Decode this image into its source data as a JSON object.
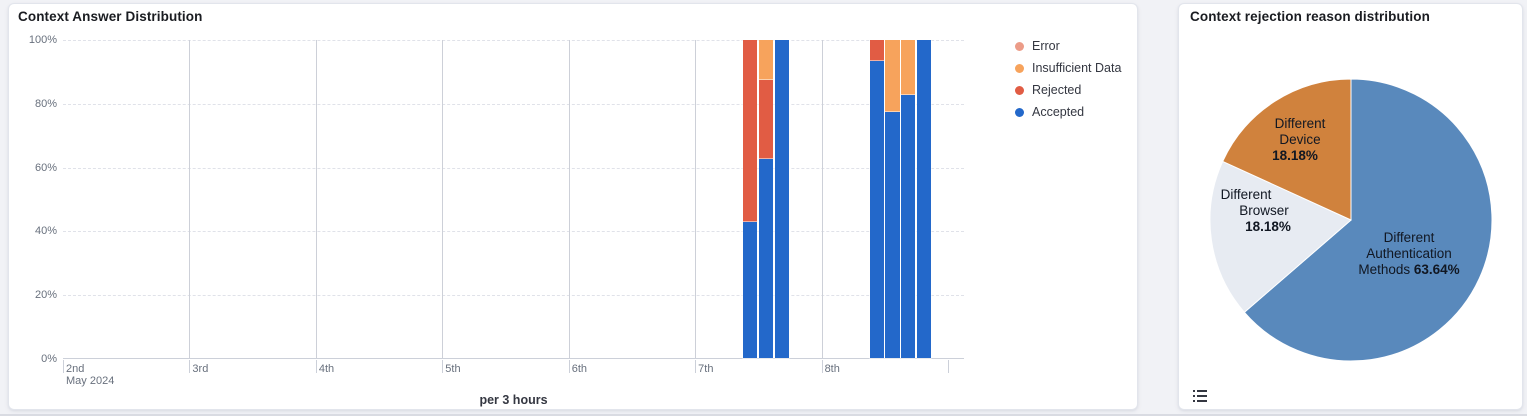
{
  "left_panel": {
    "title": "Context Answer Distribution",
    "footer_label": "per 3 hours",
    "legend": [
      {
        "label": "Error",
        "color": "#EC9C88"
      },
      {
        "label": "Insufficient Data",
        "color": "#F7A35C"
      },
      {
        "label": "Rejected",
        "color": "#E15C44"
      },
      {
        "label": "Accepted",
        "color": "#2368CA"
      }
    ]
  },
  "right_panel": {
    "title": "Context rejection reason distribution"
  },
  "chart_data": [
    {
      "type": "bar",
      "variant": "stacked-100-percent",
      "title": "Context Answer Distribution",
      "x_label": "per 3 hours",
      "x_tick_labels": [
        "2nd",
        "3rd",
        "4th",
        "5th",
        "6th",
        "7th",
        "8th"
      ],
      "x_first_tick_sublabel": "May 2024",
      "y_tick_labels": [
        "0%",
        "20%",
        "40%",
        "60%",
        "80%",
        "100%"
      ],
      "y_range": [
        0,
        100
      ],
      "slots_per_day": 8,
      "grid": "horizontal-dashed, vertical-day-lines",
      "legend_position": "right",
      "series_colors": {
        "Error": "#EC9C88",
        "Insufficient Data": "#F7A35C",
        "Rejected": "#E15C44",
        "Accepted": "#2368CA"
      },
      "bars": [
        {
          "day": "May 7",
          "time": "09:00",
          "day_index": 5,
          "slot": 3,
          "segments": [
            {
              "name": "Accepted",
              "value": 42.9
            },
            {
              "name": "Rejected",
              "value": 57.1
            }
          ]
        },
        {
          "day": "May 7",
          "time": "12:00",
          "day_index": 5,
          "slot": 4,
          "segments": [
            {
              "name": "Accepted",
              "value": 62.5
            },
            {
              "name": "Rejected",
              "value": 25
            },
            {
              "name": "Insufficient Data",
              "value": 12.5
            }
          ]
        },
        {
          "day": "May 7",
          "time": "15:00",
          "day_index": 5,
          "slot": 5,
          "segments": [
            {
              "name": "Accepted",
              "value": 100
            }
          ]
        },
        {
          "day": "May 8",
          "time": "09:00",
          "day_index": 6,
          "slot": 3,
          "segments": [
            {
              "name": "Accepted",
              "value": 93.3
            },
            {
              "name": "Rejected",
              "value": 6.7
            }
          ]
        },
        {
          "day": "May 8",
          "time": "12:00",
          "day_index": 6,
          "slot": 4,
          "segments": [
            {
              "name": "Accepted",
              "value": 77.4
            },
            {
              "name": "Insufficient Data",
              "value": 22.6
            }
          ]
        },
        {
          "day": "May 8",
          "time": "15:00",
          "day_index": 6,
          "slot": 5,
          "segments": [
            {
              "name": "Accepted",
              "value": 82.8
            },
            {
              "name": "Insufficient Data",
              "value": 17.2
            }
          ]
        },
        {
          "day": "May 8",
          "time": "18:00",
          "day_index": 6,
          "slot": 6,
          "segments": [
            {
              "name": "Accepted",
              "value": 100
            }
          ]
        }
      ]
    },
    {
      "type": "pie",
      "title": "Context rejection reason distribution",
      "start_angle_deg": 0,
      "direction": "clockwise",
      "slices": [
        {
          "label": "Different Authentication Methods",
          "value_pct": 63.64,
          "pct_label": "63.64%",
          "color": "#5989BC",
          "label_lines": [
            "Different",
            "Authentication",
            "Methods"
          ]
        },
        {
          "label": "Different Browser",
          "value_pct": 18.18,
          "pct_label": "18.18%",
          "color": "#E7EBF2",
          "label_lines": [
            "Different",
            "Browser"
          ]
        },
        {
          "label": "Different Device",
          "value_pct": 18.18,
          "pct_label": "18.18%",
          "color": "#D0823D",
          "label_lines": [
            "Different",
            "Device"
          ]
        }
      ]
    }
  ]
}
